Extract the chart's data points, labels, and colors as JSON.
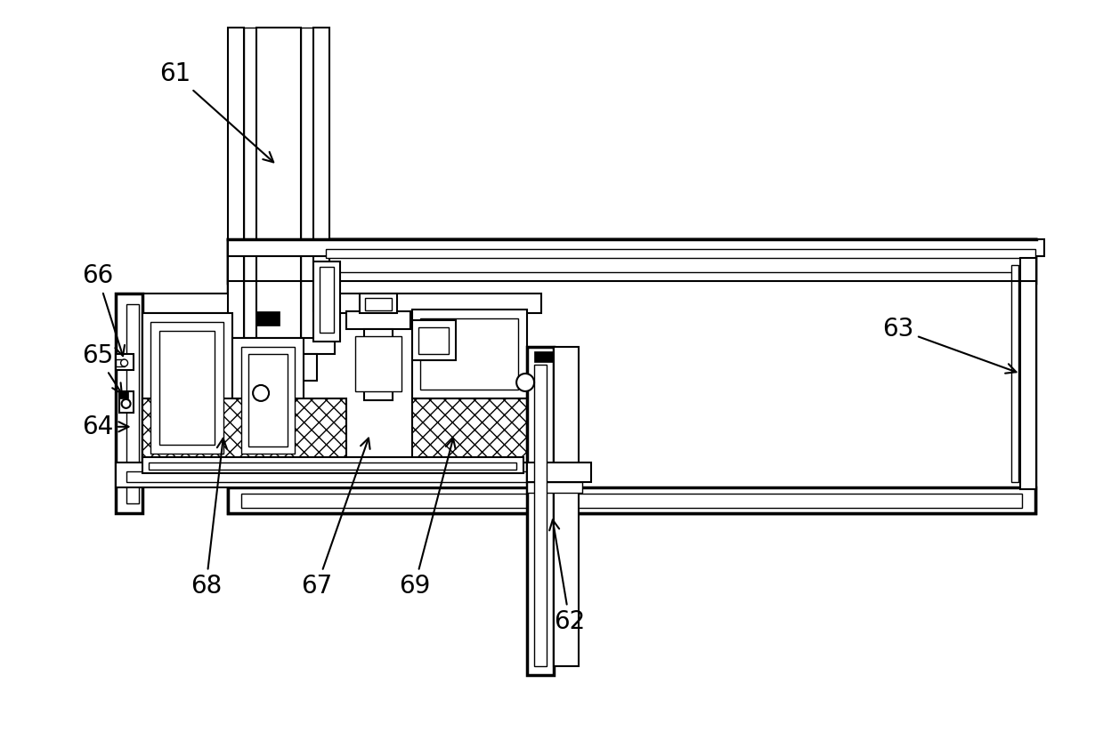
{
  "bg_color": "#ffffff",
  "line_color": "#000000",
  "fig_width": 12.39,
  "fig_height": 8.41,
  "label_fontsize": 20,
  "lw_thin": 1.0,
  "lw_med": 1.5,
  "lw_thick": 2.5
}
